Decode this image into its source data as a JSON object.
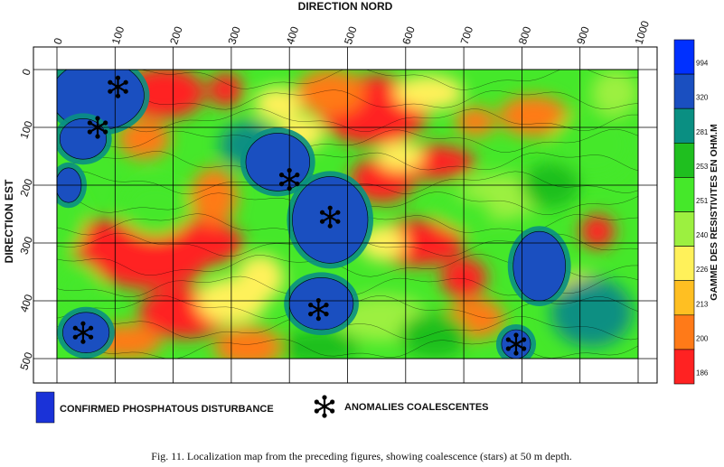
{
  "chart_data": {
    "type": "heatmap",
    "title": "",
    "xlabel": "DIRECTION NORD",
    "ylabel": "DIRECTION EST",
    "xlim": [
      0,
      1000
    ],
    "ylim": [
      0,
      500
    ],
    "x_ticks": [
      "0",
      "100",
      "200",
      "300",
      "400",
      "500",
      "600",
      "700",
      "800",
      "900",
      "1000"
    ],
    "y_ticks": [
      "0",
      "100",
      "200",
      "300",
      "400",
      "500"
    ],
    "grid": true,
    "colorbar": {
      "label": "GAMME DES RESISTIVITES EN OHM.M",
      "levels": [
        "994",
        "320",
        "281",
        "253",
        "251",
        "240",
        "226",
        "213",
        "200",
        "186"
      ],
      "colors": [
        "#0030ff",
        "#1a4fc0",
        "#0a8f82",
        "#1fbf1f",
        "#45e82a",
        "#9cf040",
        "#fff15a",
        "#ffbf22",
        "#ff7a18",
        "#ff2222"
      ]
    },
    "blue_zones": [
      {
        "x": 70,
        "y": 45,
        "rx": 80,
        "ry": 60
      },
      {
        "x": 45,
        "y": 120,
        "rx": 40,
        "ry": 35
      },
      {
        "x": 20,
        "y": 200,
        "rx": 22,
        "ry": 30
      },
      {
        "x": 380,
        "y": 160,
        "rx": 55,
        "ry": 50
      },
      {
        "x": 470,
        "y": 260,
        "rx": 65,
        "ry": 75
      },
      {
        "x": 455,
        "y": 405,
        "rx": 55,
        "ry": 45
      },
      {
        "x": 830,
        "y": 340,
        "rx": 45,
        "ry": 60
      },
      {
        "x": 50,
        "y": 455,
        "rx": 40,
        "ry": 35
      },
      {
        "x": 790,
        "y": 475,
        "rx": 25,
        "ry": 25
      }
    ],
    "stars": [
      {
        "x": 105,
        "y": 30
      },
      {
        "x": 70,
        "y": 100
      },
      {
        "x": 400,
        "y": 190
      },
      {
        "x": 470,
        "y": 255
      },
      {
        "x": 450,
        "y": 415
      },
      {
        "x": 45,
        "y": 455
      },
      {
        "x": 790,
        "y": 475
      }
    ],
    "legend": [
      {
        "kind": "blue-box",
        "label": "CONFIRMED PHOSPHATOUS DISTURBANCE"
      },
      {
        "kind": "star",
        "label": "ANOMALIES COALESCENTES"
      }
    ]
  },
  "caption": "Fig. 11. Localization map from the preceding figures, showing coalescence (stars) at 50 m depth."
}
